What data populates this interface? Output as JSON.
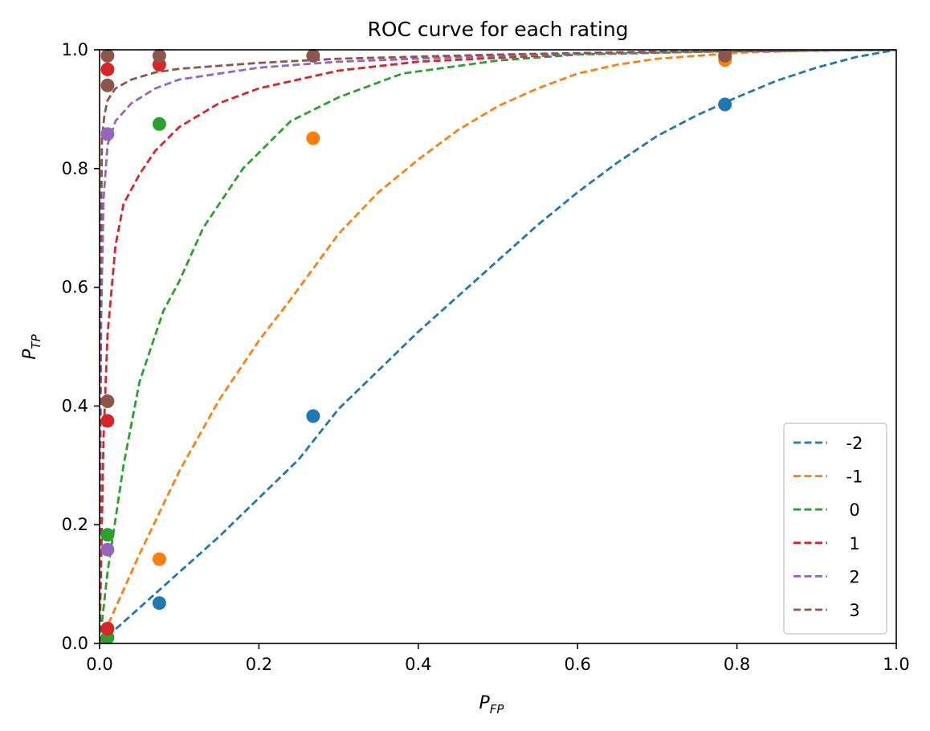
{
  "chart_data": {
    "type": "line",
    "title": "ROC curve for each rating",
    "xlabel": {
      "main": "P",
      "sub": "FP"
    },
    "ylabel": {
      "main": "P",
      "sub": "TP"
    },
    "xlim": [
      0.0,
      1.0
    ],
    "ylim": [
      0.0,
      1.0
    ],
    "xticks": [
      "0.0",
      "0.2",
      "0.4",
      "0.6",
      "0.8",
      "1.0"
    ],
    "yticks": [
      "0.0",
      "0.2",
      "0.4",
      "0.6",
      "0.8",
      "1.0"
    ],
    "grid": false,
    "legend_position": "lower-right",
    "series": [
      {
        "name": "-2",
        "color": "#1f77b4",
        "curve": [
          [
            0.0,
            0.0
          ],
          [
            0.05,
            0.06
          ],
          [
            0.1,
            0.12
          ],
          [
            0.15,
            0.18
          ],
          [
            0.2,
            0.245
          ],
          [
            0.25,
            0.31
          ],
          [
            0.3,
            0.395
          ],
          [
            0.35,
            0.46
          ],
          [
            0.4,
            0.525
          ],
          [
            0.45,
            0.585
          ],
          [
            0.5,
            0.645
          ],
          [
            0.55,
            0.705
          ],
          [
            0.6,
            0.76
          ],
          [
            0.65,
            0.81
          ],
          [
            0.7,
            0.855
          ],
          [
            0.75,
            0.89
          ],
          [
            0.8,
            0.92
          ],
          [
            0.85,
            0.948
          ],
          [
            0.9,
            0.97
          ],
          [
            0.95,
            0.988
          ],
          [
            1.0,
            1.0
          ]
        ],
        "points": [
          [
            0.075,
            0.068
          ],
          [
            0.268,
            0.383
          ],
          [
            0.785,
            0.908
          ]
        ]
      },
      {
        "name": "-1",
        "color": "#ff7f0e",
        "curve": [
          [
            0.0,
            0.0
          ],
          [
            0.02,
            0.06
          ],
          [
            0.05,
            0.15
          ],
          [
            0.1,
            0.29
          ],
          [
            0.15,
            0.41
          ],
          [
            0.2,
            0.51
          ],
          [
            0.24,
            0.58
          ],
          [
            0.3,
            0.69
          ],
          [
            0.35,
            0.76
          ],
          [
            0.4,
            0.815
          ],
          [
            0.45,
            0.865
          ],
          [
            0.5,
            0.905
          ],
          [
            0.55,
            0.935
          ],
          [
            0.6,
            0.96
          ],
          [
            0.65,
            0.975
          ],
          [
            0.7,
            0.985
          ],
          [
            0.8,
            0.995
          ],
          [
            0.9,
            0.999
          ],
          [
            1.0,
            1.0
          ]
        ],
        "points": [
          [
            0.075,
            0.142
          ],
          [
            0.268,
            0.851
          ],
          [
            0.785,
            0.983
          ]
        ]
      },
      {
        "name": "0",
        "color": "#2ca02c",
        "curve": [
          [
            0.0,
            0.0
          ],
          [
            0.01,
            0.12
          ],
          [
            0.03,
            0.3
          ],
          [
            0.05,
            0.44
          ],
          [
            0.08,
            0.56
          ],
          [
            0.1,
            0.61
          ],
          [
            0.13,
            0.7
          ],
          [
            0.18,
            0.8
          ],
          [
            0.24,
            0.88
          ],
          [
            0.3,
            0.92
          ],
          [
            0.38,
            0.96
          ],
          [
            0.5,
            0.982
          ],
          [
            0.6,
            0.992
          ],
          [
            0.8,
            0.998
          ],
          [
            1.0,
            1.0
          ]
        ],
        "points": [
          [
            0.01,
            0.01
          ],
          [
            0.01,
            0.183
          ],
          [
            0.075,
            0.875
          ]
        ]
      },
      {
        "name": "1",
        "color": "#d62728",
        "curve": [
          [
            0.0,
            0.0
          ],
          [
            0.005,
            0.35
          ],
          [
            0.01,
            0.52
          ],
          [
            0.02,
            0.67
          ],
          [
            0.03,
            0.74
          ],
          [
            0.05,
            0.79
          ],
          [
            0.07,
            0.83
          ],
          [
            0.1,
            0.87
          ],
          [
            0.15,
            0.91
          ],
          [
            0.2,
            0.935
          ],
          [
            0.3,
            0.965
          ],
          [
            0.4,
            0.98
          ],
          [
            0.6,
            0.993
          ],
          [
            0.8,
            0.998
          ],
          [
            1.0,
            1.0
          ]
        ],
        "points": [
          [
            0.01,
            0.025
          ],
          [
            0.01,
            0.375
          ],
          [
            0.01,
            0.967
          ],
          [
            0.075,
            0.975
          ]
        ]
      },
      {
        "name": "2",
        "color": "#9467bd",
        "curve": [
          [
            0.0,
            0.0
          ],
          [
            0.002,
            0.55
          ],
          [
            0.005,
            0.75
          ],
          [
            0.01,
            0.84
          ],
          [
            0.02,
            0.88
          ],
          [
            0.04,
            0.91
          ],
          [
            0.07,
            0.935
          ],
          [
            0.1,
            0.95
          ],
          [
            0.2,
            0.97
          ],
          [
            0.3,
            0.98
          ],
          [
            0.5,
            0.99
          ],
          [
            0.7,
            0.996
          ],
          [
            1.0,
            1.0
          ]
        ],
        "points": [
          [
            0.01,
            0.158
          ],
          [
            0.01,
            0.858
          ]
        ]
      },
      {
        "name": "3",
        "color": "#8c564b",
        "curve": [
          [
            0.0,
            0.0
          ],
          [
            0.001,
            0.6
          ],
          [
            0.003,
            0.85
          ],
          [
            0.006,
            0.89
          ],
          [
            0.01,
            0.915
          ],
          [
            0.02,
            0.935
          ],
          [
            0.04,
            0.95
          ],
          [
            0.07,
            0.962
          ],
          [
            0.1,
            0.968
          ],
          [
            0.2,
            0.978
          ],
          [
            0.3,
            0.985
          ],
          [
            0.5,
            0.992
          ],
          [
            0.7,
            0.997
          ],
          [
            1.0,
            1.0
          ]
        ],
        "points": [
          [
            0.01,
            0.408
          ],
          [
            0.01,
            0.94
          ],
          [
            0.01,
            0.99
          ],
          [
            0.075,
            0.99
          ],
          [
            0.268,
            0.99
          ],
          [
            0.785,
            0.99
          ]
        ]
      }
    ]
  }
}
